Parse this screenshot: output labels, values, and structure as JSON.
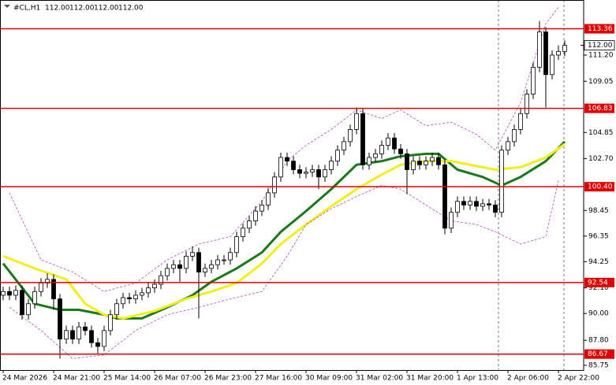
{
  "chart_data": {
    "type": "candlestick",
    "symbol": "#CL,H1",
    "header_values": [
      "112.00",
      "112.00",
      "112.00",
      "112.00"
    ],
    "xlim": [
      -0.5,
      92
    ],
    "ylim": [
      85.36,
      115.72
    ],
    "yticks": [
      {
        "value": 111.2,
        "label": "111.20"
      },
      109.05,
      104.85,
      {
        "value": 102.7,
        "label": "102.70"
      },
      98.45,
      96.35,
      94.25,
      {
        "value": 92.1,
        "label": "92.10"
      },
      {
        "value": 90,
        "label": "90.00"
      },
      {
        "value": 87.8,
        "label": "87.80"
      },
      85.75
    ],
    "xticks": [
      {
        "value": 0,
        "label": "24 Mar 2026"
      },
      {
        "value": 8,
        "label": "24 Mar 21:00"
      },
      {
        "value": 16,
        "label": "25 Mar 14:00"
      },
      {
        "value": 24,
        "label": "26 Mar 07:00"
      },
      {
        "value": 32,
        "label": "26 Mar 23:00"
      },
      {
        "value": 40,
        "label": "27 Mar 16:00"
      },
      {
        "value": 48,
        "label": "30 Mar 09:00"
      },
      {
        "value": 56,
        "label": "31 Mar 02:00"
      },
      {
        "value": 64,
        "label": "31 Mar 20:00"
      },
      {
        "value": 72,
        "label": "1 Apr 13:00"
      },
      {
        "value": 80,
        "label": "2 Apr 06:00"
      },
      {
        "value": 88,
        "label": "2 Apr 22:00"
      }
    ],
    "ohlc": [
      [
        91.5,
        92.2,
        91.1,
        91.8
      ],
      [
        91.8,
        92.2,
        91.1,
        91.5
      ],
      [
        91.5,
        92.3,
        91.1,
        91.9
      ],
      [
        91.9,
        92.3,
        89.5,
        89.9
      ],
      [
        89.9,
        91.2,
        89.5,
        90.8
      ],
      [
        90.8,
        92.2,
        90.4,
        91.8
      ],
      [
        91.8,
        92.9,
        91.4,
        92.5
      ],
      [
        92.5,
        93.3,
        92.1,
        92.8
      ],
      [
        92.8,
        93.2,
        90.3,
        91.2
      ],
      [
        91.2,
        91.6,
        86.3,
        87.9
      ],
      [
        87.9,
        89.0,
        87.5,
        88.6
      ],
      [
        88.6,
        89.0,
        87.5,
        87.9
      ],
      [
        87.9,
        89.3,
        87.5,
        88.9
      ],
      [
        88.9,
        89.3,
        88.2,
        88.6
      ],
      [
        88.6,
        89.0,
        87.2,
        87.6
      ],
      [
        87.6,
        88.0,
        86.7,
        87.3
      ],
      [
        87.3,
        89.0,
        86.9,
        88.6
      ],
      [
        88.6,
        90.3,
        88.2,
        89.9
      ],
      [
        89.9,
        91.2,
        89.5,
        90.8
      ],
      [
        90.8,
        91.7,
        90.4,
        91.3
      ],
      [
        91.3,
        91.7,
        90.8,
        91.2
      ],
      [
        91.2,
        91.9,
        90.8,
        91.5
      ],
      [
        91.5,
        92.1,
        91.1,
        91.7
      ],
      [
        91.7,
        92.5,
        91.3,
        92.1
      ],
      [
        92.1,
        92.8,
        91.7,
        92.4
      ],
      [
        92.4,
        93.5,
        92.0,
        93.1
      ],
      [
        93.1,
        94.1,
        92.7,
        93.7
      ],
      [
        93.7,
        94.4,
        93.3,
        94.0
      ],
      [
        94.0,
        94.4,
        92.6,
        93.7
      ],
      [
        93.7,
        95.1,
        93.3,
        94.7
      ],
      [
        94.7,
        95.5,
        94.3,
        95.0
      ],
      [
        95.0,
        95.4,
        89.6,
        93.4
      ],
      [
        93.4,
        94.1,
        93.0,
        93.7
      ],
      [
        93.7,
        94.4,
        93.3,
        94.0
      ],
      [
        94.0,
        94.8,
        93.6,
        94.4
      ],
      [
        94.4,
        94.8,
        94.0,
        94.4
      ],
      [
        94.4,
        95.4,
        94.0,
        95.0
      ],
      [
        95.0,
        96.7,
        94.6,
        96.3
      ],
      [
        96.3,
        97.4,
        95.9,
        97.0
      ],
      [
        97.0,
        98.0,
        96.6,
        97.6
      ],
      [
        97.6,
        98.8,
        97.2,
        98.4
      ],
      [
        98.4,
        99.3,
        98.0,
        98.9
      ],
      [
        98.9,
        100.3,
        98.5,
        99.9
      ],
      [
        99.9,
        101.6,
        99.5,
        101.2
      ],
      [
        101.2,
        103.2,
        100.8,
        102.8
      ],
      [
        102.8,
        103.2,
        102.1,
        102.5
      ],
      [
        102.5,
        102.9,
        101.4,
        101.8
      ],
      [
        101.8,
        102.2,
        101.1,
        101.5
      ],
      [
        101.5,
        102.0,
        101.1,
        101.6
      ],
      [
        101.6,
        102.2,
        101.2,
        101.8
      ],
      [
        101.8,
        102.2,
        100.2,
        101.2
      ],
      [
        101.2,
        102.2,
        100.8,
        101.8
      ],
      [
        101.8,
        102.9,
        101.4,
        102.5
      ],
      [
        102.5,
        103.8,
        102.1,
        103.4
      ],
      [
        103.4,
        104.5,
        103.0,
        104.1
      ],
      [
        104.1,
        105.5,
        103.7,
        105.1
      ],
      [
        105.1,
        106.9,
        104.7,
        106.4
      ],
      [
        106.4,
        106.8,
        101.8,
        102.2
      ],
      [
        102.2,
        103.2,
        101.8,
        102.8
      ],
      [
        102.8,
        103.5,
        102.4,
        103.1
      ],
      [
        103.1,
        104.2,
        102.7,
        103.8
      ],
      [
        103.8,
        104.8,
        103.4,
        104.4
      ],
      [
        104.4,
        104.8,
        103.1,
        103.5
      ],
      [
        103.5,
        103.9,
        102.7,
        103.1
      ],
      [
        103.1,
        103.5,
        99.8,
        101.8
      ],
      [
        101.8,
        102.9,
        101.4,
        102.5
      ],
      [
        102.5,
        102.9,
        101.8,
        102.2
      ],
      [
        102.2,
        102.9,
        101.8,
        102.5
      ],
      [
        102.5,
        103.2,
        102.1,
        102.8
      ],
      [
        102.8,
        103.2,
        101.8,
        102.2
      ],
      [
        102.2,
        102.6,
        96.5,
        97.0
      ],
      [
        97.0,
        98.7,
        96.6,
        98.3
      ],
      [
        98.3,
        99.6,
        97.9,
        99.2
      ],
      [
        99.2,
        99.6,
        98.5,
        98.9
      ],
      [
        98.9,
        99.6,
        98.5,
        99.2
      ],
      [
        99.2,
        99.6,
        98.4,
        98.8
      ],
      [
        98.8,
        99.4,
        98.4,
        99.0
      ],
      [
        99.0,
        99.4,
        98.5,
        98.9
      ],
      [
        98.9,
        99.3,
        97.9,
        98.3
      ],
      [
        98.3,
        103.8,
        97.9,
        103.4
      ],
      [
        103.4,
        104.5,
        103.0,
        104.1
      ],
      [
        104.1,
        105.5,
        103.7,
        105.1
      ],
      [
        105.1,
        106.8,
        104.7,
        106.4
      ],
      [
        106.4,
        108.4,
        106.0,
        108.0
      ],
      [
        108.0,
        110.6,
        107.6,
        110.2
      ],
      [
        110.2,
        114.0,
        109.8,
        113.1
      ],
      [
        113.1,
        113.5,
        106.9,
        109.6
      ],
      [
        109.6,
        111.6,
        109.2,
        111.2
      ],
      [
        111.2,
        112.0,
        110.8,
        111.5
      ],
      [
        111.5,
        112.4,
        111.1,
        112.0
      ]
    ],
    "lines": [
      {
        "color": "#1a7a1a",
        "width": 3,
        "x": [
          0,
          5,
          9,
          12,
          16,
          18,
          22,
          26,
          30,
          33,
          37,
          41,
          44,
          48,
          52,
          56,
          60,
          63,
          67,
          69,
          72,
          76,
          79,
          82,
          86,
          89
        ],
        "values": [
          94.1,
          90.8,
          90.3,
          90.3,
          89.9,
          89.6,
          89.6,
          90.5,
          91.5,
          92.6,
          93.7,
          95.0,
          96.7,
          98.4,
          100.2,
          102.2,
          102.5,
          102.9,
          103.1,
          103.1,
          101.8,
          101.2,
          100.5,
          101.2,
          102.5,
          104.1
        ]
      },
      {
        "color": "#f2ee1a",
        "width": 3,
        "x": [
          0,
          5,
          10,
          13,
          16,
          19,
          24,
          29,
          33,
          37,
          41,
          44,
          48,
          52,
          56,
          60,
          63,
          67,
          71,
          74,
          78,
          82,
          86,
          89
        ],
        "values": [
          94.7,
          93.7,
          92.8,
          90.8,
          89.9,
          89.6,
          90.2,
          91.2,
          91.8,
          92.5,
          94.1,
          95.7,
          97.3,
          98.8,
          100.2,
          101.4,
          102.2,
          102.5,
          102.5,
          102.2,
          101.8,
          102.0,
          102.8,
          103.9
        ]
      },
      {
        "color": "#b04fc0",
        "width": 0.8,
        "dash": true,
        "x": [
          1,
          6,
          11,
          16,
          21,
          26,
          31,
          36,
          41,
          45,
          48,
          52,
          56,
          60,
          63,
          67,
          71,
          75,
          78,
          82,
          86,
          88
        ],
        "values": [
          99.9,
          94.4,
          93.4,
          91.8,
          92.5,
          94.4,
          95.7,
          96.3,
          99.2,
          102.5,
          103.8,
          105.1,
          106.7,
          106.0,
          106.7,
          105.4,
          105.7,
          104.7,
          103.4,
          107.3,
          113.8,
          115.1
        ]
      },
      {
        "color": "#b04fc0",
        "width": 0.8,
        "dash": true,
        "x": [
          1,
          6,
          11,
          16,
          21,
          26,
          31,
          36,
          41,
          45,
          48,
          52,
          56,
          60,
          63,
          67,
          71,
          75,
          78,
          82,
          86,
          88
        ],
        "values": [
          90.5,
          88.6,
          86.3,
          86.6,
          88.6,
          89.9,
          90.5,
          91.2,
          91.8,
          94.7,
          97.3,
          98.6,
          99.6,
          100.5,
          100.2,
          98.9,
          97.6,
          97.3,
          96.7,
          95.7,
          96.3,
          100.9
        ]
      }
    ],
    "level_color": "#e00000",
    "levels": [
      113.36,
      106.83,
      {
        "value": 100.4,
        "label": "100.40"
      },
      92.54,
      86.67
    ],
    "last_price": {
      "value": 112,
      "label": "112.00"
    }
  }
}
